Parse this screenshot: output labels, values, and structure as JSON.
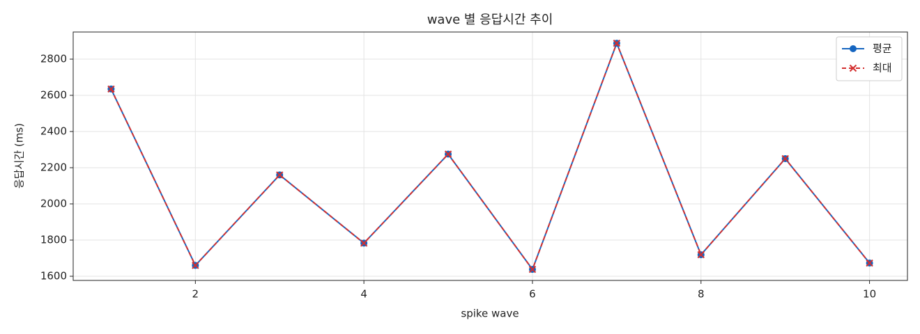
{
  "chart_data": {
    "type": "line",
    "title": "wave 별 응답시간 추이",
    "x_label": "spike wave",
    "y_label": "응답시간 (ms)",
    "x": [
      1,
      2,
      3,
      4,
      5,
      6,
      7,
      8,
      9,
      10
    ],
    "series": [
      {
        "name": "평균",
        "color": "#1565c0",
        "marker": "circle",
        "dash": false,
        "values": [
          2635,
          1660,
          2160,
          1783,
          2275,
          1638,
          2888,
          1719,
          2250,
          1673
        ]
      },
      {
        "name": "최대",
        "color": "#d32f2f",
        "marker": "x",
        "dash": true,
        "values": [
          2635,
          1660,
          2160,
          1783,
          2275,
          1638,
          2888,
          1719,
          2250,
          1673
        ]
      }
    ],
    "xlim": [
      0.55,
      10.45
    ],
    "xticks": [
      2,
      4,
      6,
      8,
      10
    ],
    "ylim": [
      1577,
      2950
    ],
    "yticks": [
      1600,
      1800,
      2000,
      2200,
      2400,
      2600,
      2800
    ],
    "grid": true,
    "legend": "upper right"
  }
}
